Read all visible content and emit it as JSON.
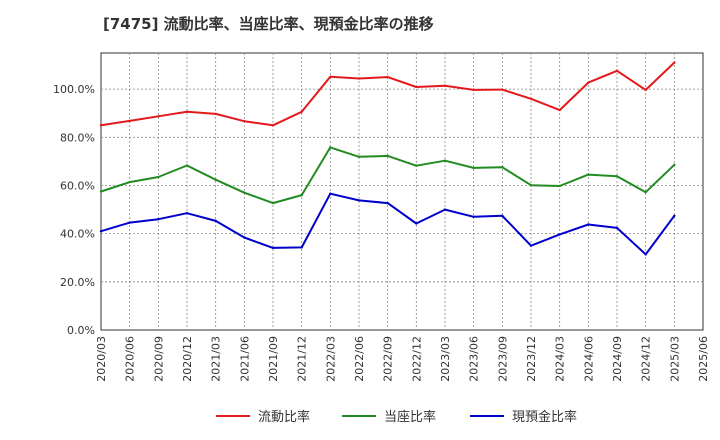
{
  "chart_data": {
    "type": "line",
    "title": "[7475]  流動比率、当座比率、現預金比率の推移",
    "xlabel": "",
    "ylabel": "",
    "ylim": [
      0,
      115
    ],
    "yticks": [
      0,
      20,
      40,
      60,
      80,
      100
    ],
    "ytick_labels": [
      "0.0%",
      "20.0%",
      "40.0%",
      "60.0%",
      "80.0%",
      "100.0%"
    ],
    "categories": [
      "2020/03",
      "2020/06",
      "2020/09",
      "2020/12",
      "2021/03",
      "2021/06",
      "2021/09",
      "2021/12",
      "2022/03",
      "2022/06",
      "2022/09",
      "2022/12",
      "2023/03",
      "2023/06",
      "2023/09",
      "2023/12",
      "2024/03",
      "2024/06",
      "2024/09",
      "2024/12",
      "2025/03",
      "2025/06"
    ],
    "grid": true,
    "legend_position": "bottom",
    "series": [
      {
        "name": "流動比率",
        "color": "#e31a1c",
        "values": [
          85.0,
          86.8,
          88.7,
          90.6,
          89.7,
          86.7,
          85.0,
          90.6,
          105.1,
          104.4,
          105.0,
          100.9,
          101.4,
          99.7,
          99.8,
          96.0,
          91.3,
          102.7,
          107.6,
          99.7,
          111.0,
          null
        ]
      },
      {
        "name": "当座比率",
        "color": "#228b22",
        "values": [
          57.5,
          61.4,
          63.5,
          68.3,
          62.4,
          57.0,
          52.7,
          56.0,
          75.8,
          71.9,
          72.3,
          68.2,
          70.3,
          67.3,
          67.6,
          60.1,
          59.8,
          64.5,
          63.8,
          57.2,
          68.6,
          null
        ]
      },
      {
        "name": "現預金比率",
        "color": "#0000cd",
        "values": [
          41.0,
          44.6,
          46.0,
          48.5,
          45.3,
          38.4,
          34.1,
          34.3,
          56.6,
          53.8,
          52.7,
          44.2,
          50.0,
          47.0,
          47.4,
          35.0,
          39.7,
          43.8,
          42.4,
          31.4,
          47.4,
          null
        ]
      }
    ]
  }
}
